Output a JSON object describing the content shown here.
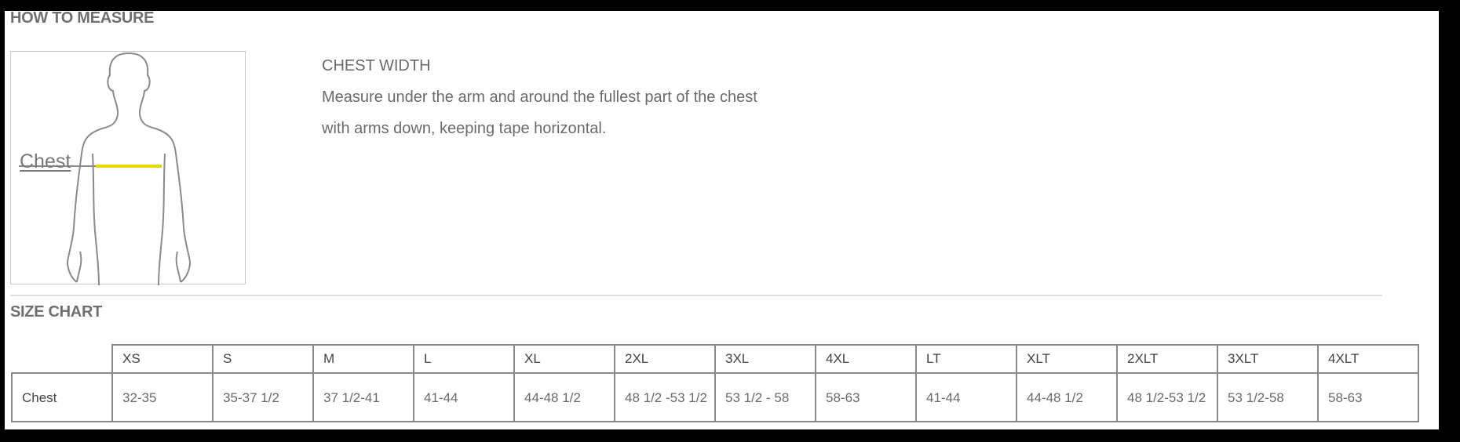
{
  "how_to_measure": {
    "heading": "HOW TO MEASURE",
    "figure_label": "Chest",
    "title": "CHEST WIDTH",
    "lines": [
      "Measure under the arm and around the fullest part of the chest",
      "with arms down, keeping tape horizontal."
    ],
    "tape_color": "#e8d800"
  },
  "size_chart": {
    "heading": "SIZE CHART",
    "columns": [
      "XS",
      "S",
      "M",
      "L",
      "XL",
      "2XL",
      "3XL",
      "4XL",
      "LT",
      "XLT",
      "2XLT",
      "3XLT",
      "4XLT"
    ],
    "rows": [
      {
        "label": "Chest",
        "values": [
          "32-35",
          "35-37 1/2",
          "37 1/2-41",
          "41-44",
          "44-48 1/2",
          "48 1/2 -53 1/2",
          "53 1/2 - 58",
          "58-63",
          "41-44",
          "44-48 1/2",
          "48 1/2-53 1/2",
          "53 1/2-58",
          "58-63"
        ]
      }
    ]
  }
}
